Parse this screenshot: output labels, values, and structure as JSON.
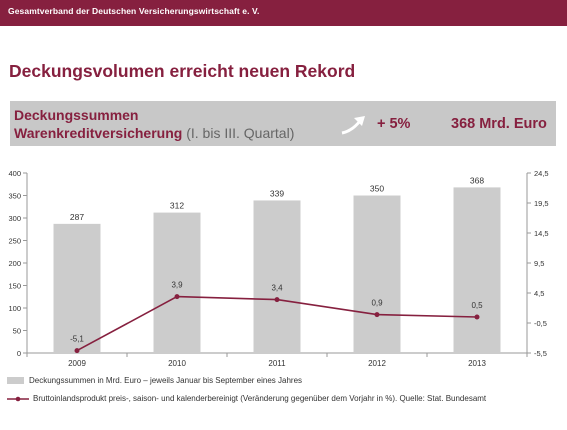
{
  "header": {
    "org_name": "Gesamtverband der Deutschen Versicherungswirtschaft e. V."
  },
  "title": "Deckungsvolumen erreicht neuen Rekord",
  "banner": {
    "line1": "Deckungssummen",
    "line2_main": "Warenkreditversicherung",
    "line2_sub": " (I. bis III. Quartal)",
    "change": "+ 5%",
    "total": "368 Mrd. Euro"
  },
  "colors": {
    "brand": "#86203f",
    "bar": "#cccccc",
    "line": "#86203f"
  },
  "chart_data": {
    "type": "bar",
    "categories": [
      "2009",
      "2010",
      "2011",
      "2012",
      "2013"
    ],
    "series": [
      {
        "name": "Deckungssummen in Mrd. Euro – jeweils Januar bis September eines Jahres",
        "type": "bar",
        "axis": "left",
        "values": [
          287,
          312,
          339,
          350,
          368
        ],
        "labels": [
          "287",
          "312",
          "339",
          "350",
          "368"
        ]
      },
      {
        "name": "Bruttoinlandsprodukt preis-, saison- und kalenderbereinigt (Veränderung gegenüber dem Vorjahr in %). Quelle: Stat. Bundesamt",
        "type": "line",
        "axis": "right",
        "values": [
          -5.1,
          3.9,
          3.4,
          0.9,
          0.5
        ],
        "labels": [
          "-5,1",
          "3,9",
          "3,4",
          "0,9",
          "0,5"
        ]
      }
    ],
    "y_left": {
      "min": 0,
      "max": 400,
      "ticks": [
        0,
        50,
        100,
        150,
        200,
        250,
        300,
        350,
        400
      ],
      "tick_labels": [
        "0",
        "50",
        "100",
        "150",
        "200",
        "250",
        "300",
        "350",
        "400"
      ]
    },
    "y_right": {
      "min": -5.5,
      "max": 24.5,
      "ticks": [
        -5.5,
        -0.5,
        4.5,
        9.5,
        14.5,
        19.5,
        24.5
      ],
      "tick_labels": [
        "-5,5",
        "-0,5",
        "4,5",
        "9,5",
        "14,5",
        "19,5",
        "24,5"
      ]
    },
    "grid": false,
    "legend_position": "bottom"
  }
}
